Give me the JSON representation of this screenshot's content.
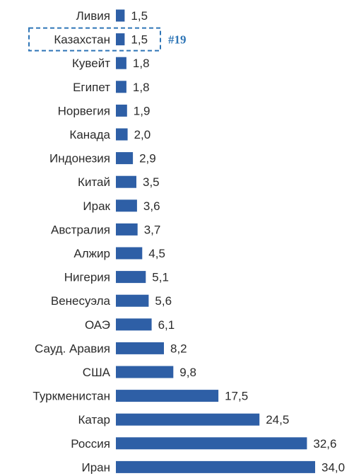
{
  "colors": {
    "bar": "#2e5fa6",
    "highlight": "#2e75b6",
    "text": "#2b2b2b"
  },
  "highlight": {
    "category": "Казахстан",
    "rank_label": "#19"
  },
  "chart_data": {
    "type": "bar",
    "orientation": "horizontal",
    "title": "",
    "xlabel": "",
    "ylabel": "",
    "grid": false,
    "categories": [
      "Ливия",
      "Казахстан",
      "Кувейт",
      "Египет",
      "Норвегия",
      "Канада",
      "Индонезия",
      "Китай",
      "Ирак",
      "Австралия",
      "Алжир",
      "Нигерия",
      "Венесуэла",
      "ОАЭ",
      "Сауд. Аравия",
      "США",
      "Туркменистан",
      "Катар",
      "Россия",
      "Иран"
    ],
    "values": [
      1.5,
      1.5,
      1.8,
      1.8,
      1.9,
      2.0,
      2.9,
      3.5,
      3.6,
      3.7,
      4.5,
      5.1,
      5.6,
      6.1,
      8.2,
      9.8,
      17.5,
      24.5,
      32.6,
      34.0
    ],
    "value_labels": [
      "1,5",
      "1,5",
      "1,8",
      "1,8",
      "1,9",
      "2,0",
      "2,9",
      "3,5",
      "3,6",
      "3,7",
      "4,5",
      "5,1",
      "5,6",
      "6,1",
      "8,2",
      "9,8",
      "17,5",
      "24,5",
      "32,6",
      "34,0"
    ],
    "xlim": [
      0,
      34.0
    ]
  }
}
